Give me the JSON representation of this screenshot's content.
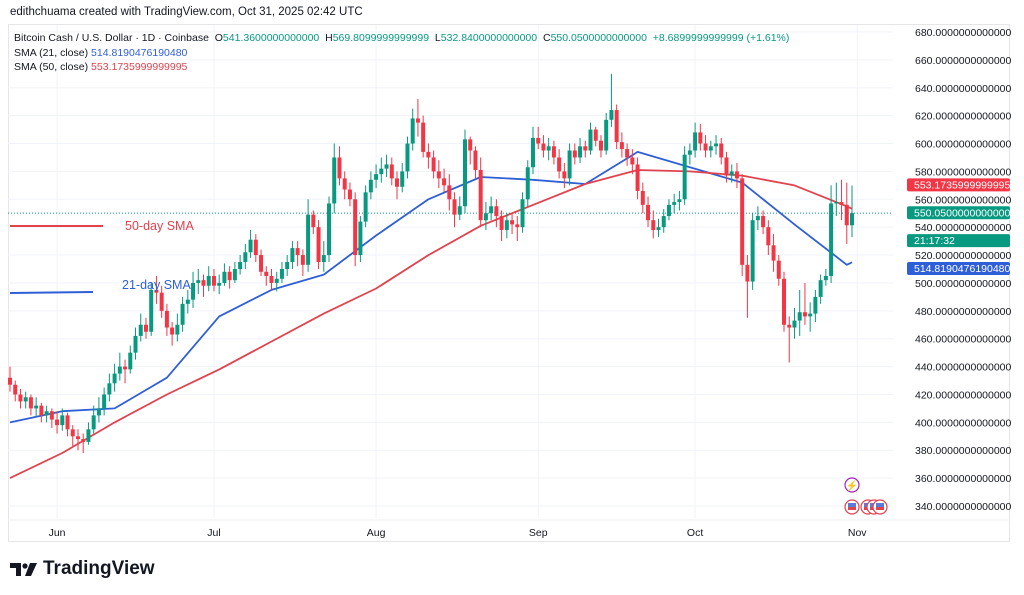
{
  "credit": "edithchuama created with TradingView.com, Oct 31, 2025 02:42 UTC",
  "legend": {
    "symbol": "Bitcoin Cash / U.S. Dollar · 1D · Coinbase",
    "o_label": "O",
    "o": "541.3600000000000",
    "h_label": "H",
    "h": "569.8099999999999",
    "l_label": "L",
    "l": "532.8400000000000",
    "c_label": "C",
    "c": "550.0500000000000",
    "change": "+8.6899999999999 (+1.61%)",
    "sma21_label": "SMA (21, close)",
    "sma21_value": "514.8190476190480",
    "sma50_label": "SMA (50, close)",
    "sma50_value": "553.1735999999995"
  },
  "annotations": {
    "sma50": "50-day SMA",
    "sma21": "21-day SMA"
  },
  "logo": "TradingView",
  "colors": {
    "up": "#089981",
    "down": "#f23645",
    "sma21": "#2f5fd6",
    "sma50": "#e0434f",
    "grid": "#f0f3fa"
  },
  "chart_data": {
    "type": "candlestick",
    "x_range": [
      "2025-05-23",
      "2025-10-31"
    ],
    "ylim": [
      330,
      690
    ],
    "y_ticks": [
      "680.0000000000000",
      "660.0000000000000",
      "640.0000000000000",
      "620.0000000000000",
      "600.0000000000000",
      "580.0000000000000",
      "560.0000000000000",
      "540.0000000000000",
      "520.0000000000000",
      "500.0000000000000",
      "480.0000000000000",
      "460.0000000000000",
      "440.0000000000000",
      "420.0000000000000",
      "400.0000000000000",
      "380.0000000000000",
      "360.0000000000000",
      "340.0000000000000"
    ],
    "x_ticks": [
      {
        "label": "Jun",
        "date": "2025-06-01"
      },
      {
        "label": "Jul",
        "date": "2025-07-01"
      },
      {
        "label": "Aug",
        "date": "2025-08-01"
      },
      {
        "label": "Sep",
        "date": "2025-09-01"
      },
      {
        "label": "Oct",
        "date": "2025-10-01"
      },
      {
        "label": "Nov",
        "date": "2025-11-01"
      }
    ],
    "open": [
      432,
      427,
      420,
      415,
      418,
      410,
      412,
      405,
      408,
      402,
      398,
      405,
      395,
      390,
      388,
      386,
      395,
      405,
      410,
      420,
      428,
      435,
      440,
      438,
      450,
      462,
      470,
      465,
      495,
      493,
      480,
      468,
      463,
      470,
      485,
      488,
      500,
      502,
      498,
      505,
      498,
      500,
      508,
      502,
      510,
      515,
      522,
      531,
      520,
      508,
      505,
      500,
      503,
      510,
      515,
      525,
      520,
      513,
      549,
      540,
      515,
      520,
      557,
      590,
      575,
      567,
      560,
      520,
      544,
      565,
      574,
      578,
      582,
      585,
      575,
      569,
      580,
      600,
      618,
      615,
      594,
      590,
      580,
      575,
      570,
      560,
      549,
      555,
      603,
      595,
      581,
      545,
      550,
      555,
      548,
      538,
      545,
      542,
      540,
      560,
      583,
      604,
      600,
      595,
      598,
      590,
      580,
      575,
      595,
      590,
      598,
      595,
      610,
      602,
      595,
      617,
      624,
      601,
      596,
      590,
      585,
      566,
      556,
      545,
      538,
      540,
      548,
      556,
      558,
      560,
      592,
      595,
      608,
      600,
      595,
      598,
      600,
      590,
      577,
      580,
      575,
      513,
      501,
      545,
      548,
      540,
      527,
      516,
      503,
      470,
      468,
      473,
      479,
      476,
      478,
      490,
      502,
      505,
      557,
      558,
      556,
      541.36
    ],
    "high": [
      440,
      430,
      424,
      422,
      420,
      418,
      414,
      412,
      410,
      408,
      410,
      407,
      398,
      395,
      392,
      400,
      412,
      418,
      425,
      435,
      442,
      450,
      445,
      455,
      468,
      478,
      475,
      500,
      505,
      498,
      485,
      472,
      478,
      490,
      495,
      508,
      510,
      506,
      512,
      510,
      506,
      514,
      512,
      515,
      520,
      528,
      538,
      535,
      524,
      512,
      510,
      508,
      515,
      520,
      530,
      530,
      524,
      560,
      552,
      545,
      530,
      562,
      600,
      598,
      580,
      572,
      565,
      548,
      570,
      580,
      585,
      590,
      592,
      590,
      580,
      586,
      605,
      625,
      632,
      620,
      600,
      595,
      588,
      582,
      578,
      565,
      562,
      610,
      605,
      598,
      590,
      558,
      562,
      560,
      552,
      550,
      550,
      548,
      565,
      588,
      612,
      612,
      606,
      604,
      602,
      596,
      586,
      600,
      600,
      604,
      602,
      615,
      612,
      606,
      622,
      650,
      628,
      608,
      600,
      596,
      590,
      572,
      562,
      552,
      546,
      553,
      560,
      564,
      566,
      598,
      600,
      615,
      614,
      606,
      602,
      606,
      604,
      594,
      585,
      586,
      578,
      520,
      550,
      555,
      552,
      545,
      535,
      520,
      508,
      476,
      482,
      495,
      500,
      486,
      495,
      506,
      510,
      570,
      572,
      574,
      572,
      569.81
    ],
    "low": [
      422,
      415,
      410,
      410,
      405,
      404,
      400,
      400,
      396,
      392,
      394,
      390,
      383,
      380,
      378,
      384,
      392,
      400,
      405,
      415,
      422,
      430,
      428,
      435,
      445,
      458,
      460,
      462,
      485,
      475,
      462,
      455,
      458,
      465,
      478,
      482,
      492,
      490,
      494,
      494,
      492,
      498,
      496,
      500,
      506,
      510,
      518,
      515,
      505,
      498,
      495,
      494,
      500,
      505,
      510,
      512,
      505,
      508,
      535,
      510,
      508,
      515,
      550,
      570,
      560,
      555,
      512,
      515,
      540,
      560,
      568,
      572,
      576,
      570,
      560,
      565,
      575,
      595,
      605,
      590,
      582,
      575,
      568,
      565,
      552,
      540,
      545,
      550,
      585,
      575,
      540,
      538,
      545,
      540,
      530,
      532,
      535,
      530,
      536,
      555,
      578,
      596,
      590,
      588,
      585,
      575,
      568,
      570,
      585,
      586,
      590,
      592,
      598,
      590,
      592,
      612,
      596,
      590,
      584,
      578,
      560,
      550,
      540,
      532,
      533,
      536,
      545,
      550,
      552,
      556,
      585,
      590,
      595,
      590,
      590,
      592,
      585,
      572,
      572,
      568,
      505,
      475,
      495,
      538,
      535,
      520,
      508,
      498,
      465,
      443,
      460,
      462,
      470,
      465,
      472,
      485,
      498,
      500,
      548,
      545,
      528,
      532.84
    ],
    "close": [
      427,
      420,
      415,
      418,
      410,
      412,
      405,
      408,
      402,
      398,
      405,
      395,
      390,
      388,
      386,
      395,
      405,
      410,
      420,
      428,
      435,
      440,
      438,
      450,
      462,
      470,
      465,
      495,
      493,
      480,
      468,
      463,
      470,
      485,
      488,
      500,
      502,
      498,
      505,
      498,
      500,
      508,
      502,
      510,
      515,
      522,
      531,
      520,
      508,
      505,
      500,
      503,
      510,
      515,
      525,
      520,
      513,
      549,
      540,
      515,
      520,
      557,
      590,
      575,
      567,
      560,
      520,
      544,
      565,
      574,
      578,
      582,
      585,
      575,
      569,
      580,
      600,
      618,
      615,
      594,
      590,
      580,
      575,
      570,
      560,
      549,
      555,
      603,
      595,
      581,
      545,
      550,
      555,
      548,
      538,
      545,
      542,
      540,
      560,
      583,
      604,
      600,
      595,
      598,
      590,
      580,
      575,
      595,
      590,
      598,
      595,
      610,
      602,
      595,
      617,
      624,
      601,
      596,
      590,
      585,
      566,
      556,
      545,
      538,
      540,
      548,
      556,
      558,
      560,
      592,
      595,
      608,
      600,
      595,
      598,
      600,
      590,
      577,
      580,
      575,
      513,
      501,
      545,
      548,
      540,
      527,
      516,
      503,
      470,
      468,
      473,
      479,
      476,
      478,
      490,
      502,
      505,
      557,
      558,
      556,
      541.36,
      550.05
    ],
    "series": [
      {
        "name": "SMA (21, close)",
        "every_n_candles": 10,
        "values": [
          400,
          408,
          410,
          432,
          476,
          495,
          506,
          534,
          560,
          576,
          574,
          571,
          594,
          583,
          572,
          542,
          513,
          514.819
        ]
      },
      {
        "name": "SMA (50, close)",
        "every_n_candles": 10,
        "values": [
          360,
          378,
          400,
          420,
          438,
          458,
          478,
          496,
          520,
          541,
          556,
          571,
          581,
          580,
          577,
          570,
          555,
          553.1736
        ]
      }
    ],
    "price_tags": {
      "sma50": "553.1735999999995",
      "last": "550.0500000000000",
      "countdown": "21:17:32",
      "sma21": "514.8190476190480"
    }
  }
}
